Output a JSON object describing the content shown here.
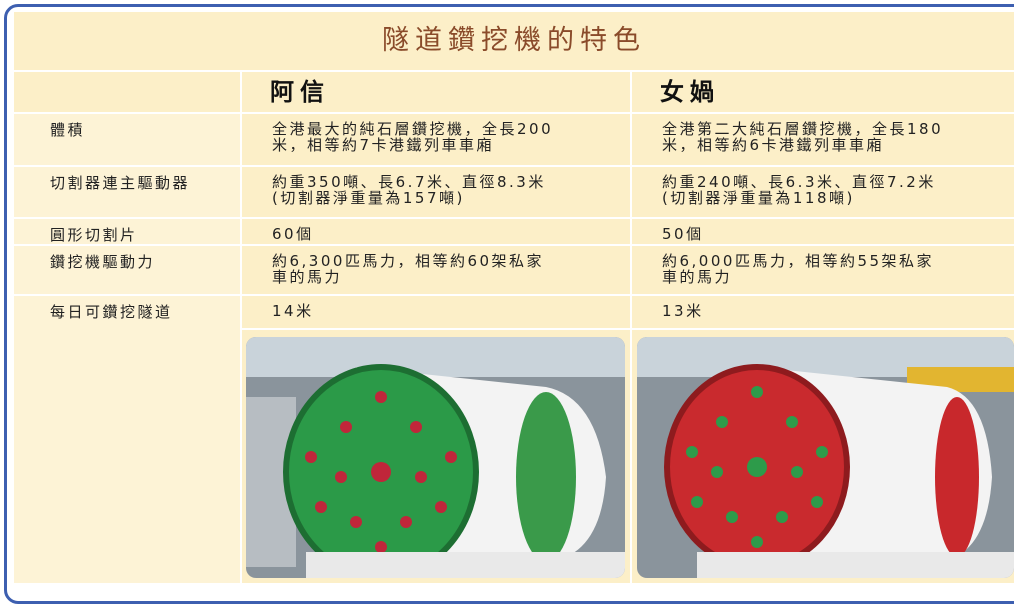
{
  "title": "隧道鑽挖機的特色",
  "table": {
    "header": [
      "阿信",
      "女媧"
    ],
    "rows": [
      {
        "label": "體積",
        "cells": [
          [
            "全港最大的純石層鑽挖機，全長200",
            "米，相等約7卡港鐵列車車廂"
          ],
          [
            "全港第二大純石層鑽挖機，全長180",
            "米，相等約6卡港鐵列車車廂"
          ]
        ]
      },
      {
        "label": "切割器連主驅動器",
        "cells": [
          [
            "約重350噸、長6.7米、直徑8.3米",
            "(切割器淨重量為157噸)"
          ],
          [
            "約重240噸、長6.3米、直徑7.2米",
            "(切割器淨重量為118噸)"
          ]
        ]
      },
      {
        "label": "圓形切割片",
        "cells": [
          [
            "60個"
          ],
          [
            "50個"
          ]
        ]
      },
      {
        "label": "鑽挖機驅動力",
        "cells": [
          [
            "約6,300匹馬力，相等約60架私家",
            "車的馬力"
          ],
          [
            "約6,000匹馬力，相等約55架私家",
            "車的馬力"
          ]
        ]
      },
      {
        "label": "每日可鑽挖隧道",
        "cells": [
          [
            "14米"
          ],
          [
            "13米"
          ]
        ]
      }
    ]
  }
}
